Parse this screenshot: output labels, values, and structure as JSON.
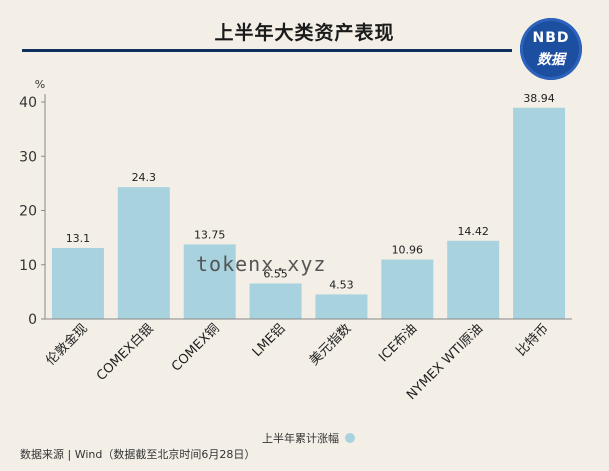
{
  "header": {
    "title": "上半年大类资产表现",
    "logo_top": "NBD",
    "logo_bottom": "数据"
  },
  "footer": {
    "source": "数据来源 | Wind（数据截至北京时间6月28日）",
    "legend_label": "上半年累计涨幅"
  },
  "overlay": {
    "watermark": "tokenx.xyz"
  },
  "colors": {
    "bar": "#a8d2dd",
    "axis": "#888888",
    "title_bar": "#0f2f5f",
    "logo": "#1c4fa0"
  },
  "chart_data": {
    "type": "bar",
    "ylabel": "%",
    "ylim": [
      0,
      40
    ],
    "yticks": [
      0,
      10,
      20,
      30,
      40
    ],
    "categories": [
      "伦敦金现",
      "COMEX白银",
      "COMEX铜",
      "LME铝",
      "美元指数",
      "ICE布油",
      "NYMEX WTI原油",
      "比特币"
    ],
    "series": [
      {
        "name": "上半年累计涨幅",
        "values": [
          13.1,
          24.3,
          13.75,
          6.55,
          4.53,
          10.96,
          14.42,
          38.94
        ],
        "labels": [
          "13.1",
          "24.3",
          "13.75",
          "6.55",
          "4.53",
          "10.96",
          "14.42",
          "38.94"
        ]
      }
    ],
    "legend": "bottom-center",
    "grid": false
  }
}
